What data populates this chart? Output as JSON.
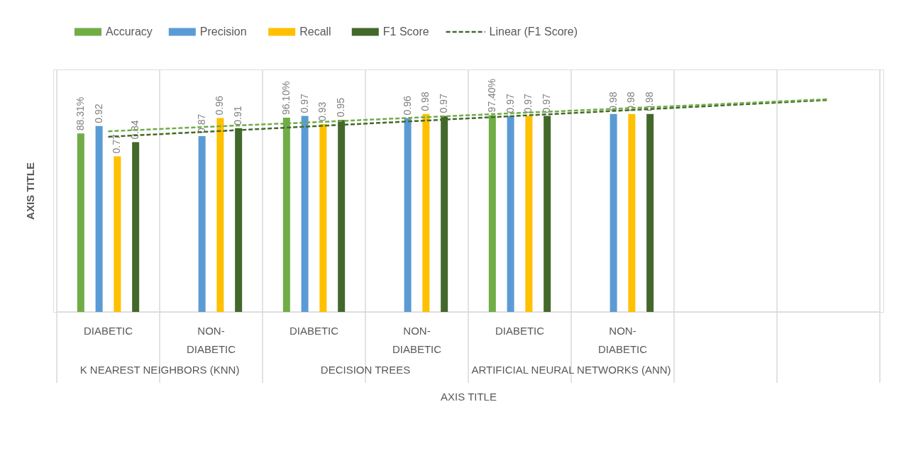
{
  "chart_data": {
    "type": "bar",
    "xlabel": "AXIS TITLE",
    "ylabel": "AXIS TITLE",
    "categories": [
      "DIABETIC",
      "NON-DIABETIC",
      "DIABETIC",
      "NON-DIABETIC",
      "DIABETIC",
      "NON-DIABETIC",
      null,
      null
    ],
    "ylim": [
      0,
      1.2
    ],
    "tick_labels": "x",
    "grid": "x",
    "legend": "top",
    "annotations": [
      "K NEAREST NEIGHBORS (KNN)",
      "DECISION TREES",
      "ARTIFICIAL NEURAL NETWORKS (ANN)"
    ],
    "series": [
      {
        "name": "Accuracy",
        "color": "#70ad47",
        "values": [
          0.8831,
          null,
          0.961,
          null,
          0.974,
          null,
          null,
          null
        ],
        "value_labels": [
          "88.31%",
          null,
          "96.10%",
          null,
          "97.40%",
          null,
          null,
          null
        ]
      },
      {
        "name": "Precision",
        "color": "#5b9bd5",
        "values": [
          0.92,
          0.87,
          0.97,
          0.96,
          0.97,
          0.98,
          null,
          null
        ],
        "value_labels": [
          "0.92",
          "0.87",
          "0.97",
          "0.96",
          "0.97",
          "0.98",
          null,
          null
        ]
      },
      {
        "name": "Recall",
        "color": "#ffc000",
        "values": [
          0.77,
          0.96,
          0.93,
          0.98,
          0.97,
          0.98,
          null,
          null
        ],
        "value_labels": [
          "0.77",
          "0.96",
          "0.93",
          "0.98",
          "0.97",
          "0.98",
          null,
          null
        ]
      },
      {
        "name": "F1 Score",
        "color": "#43682b",
        "values": [
          0.84,
          0.91,
          0.95,
          0.97,
          0.97,
          0.98,
          null,
          null
        ],
        "value_labels": [
          "0.84",
          "0.91",
          "0.95",
          "0.97",
          "0.97",
          "0.98",
          null,
          null
        ]
      },
      {
        "name": "Linear (F1 Score)",
        "type": "line",
        "line_style": "dashed",
        "color": "#43682b",
        "values": [
          0.867,
          0.893,
          0.919,
          0.945,
          0.971,
          0.997,
          1.023,
          1.049
        ]
      },
      {
        "type": "line",
        "line_style": "dashed",
        "color": "#70ad47",
        "values": [
          0.894,
          0.917,
          0.939,
          0.962,
          0.985,
          1.007,
          1.03,
          1.053
        ]
      }
    ]
  }
}
